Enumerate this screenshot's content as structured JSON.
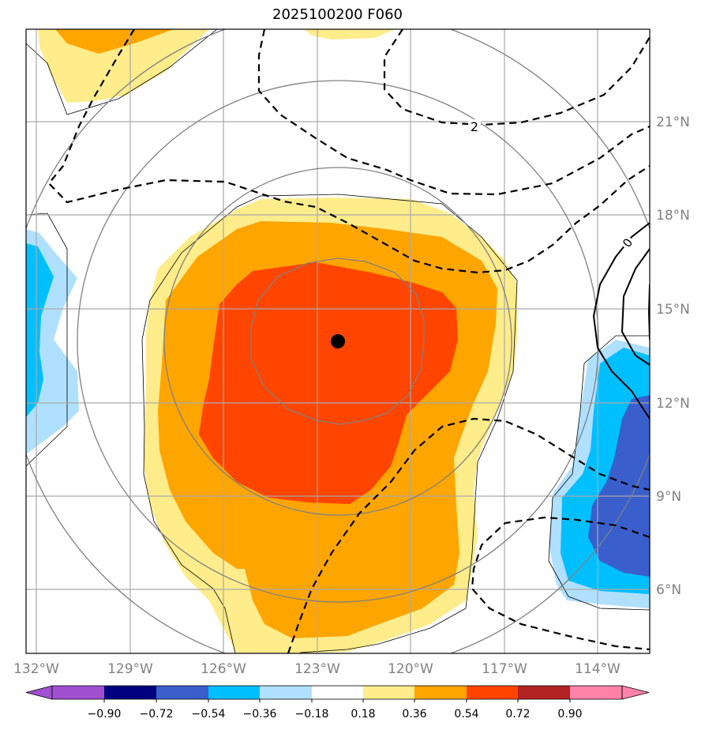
{
  "title": "2025100200 F060",
  "map": {
    "center_marker": "storm-center-dot",
    "lon_ticks": [
      "132°W",
      "129°W",
      "126°W",
      "123°W",
      "120°W",
      "117°W",
      "114°W"
    ],
    "lat_ticks": [
      "21°N",
      "18°N",
      "15°N",
      "12°N",
      "9°N",
      "6°N"
    ],
    "contour_labels": [
      "2",
      "0"
    ]
  },
  "colorbar": {
    "labels": [
      "−0.90",
      "−0.72",
      "−0.54",
      "−0.36",
      "−0.18",
      "0.18",
      "0.36",
      "0.54",
      "0.72",
      "0.90"
    ],
    "colors": [
      "#a050d0",
      "#000080",
      "#3a5fcd",
      "#00bfff",
      "#b0e0ff",
      "#ffffff",
      "#ffec8b",
      "#ffa500",
      "#ff4500",
      "#b22222",
      "#ff82ab",
      "#ff82ab"
    ]
  }
}
